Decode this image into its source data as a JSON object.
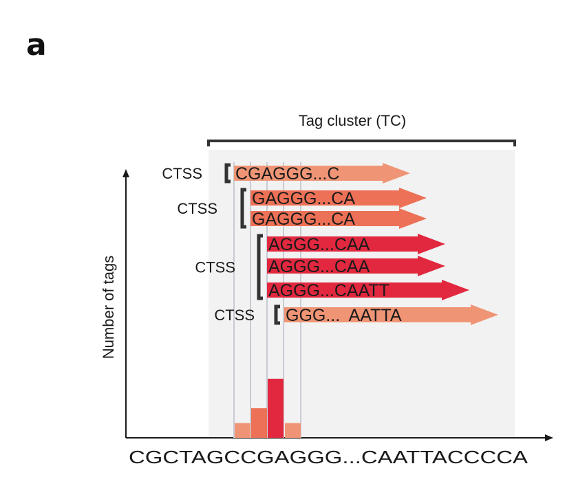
{
  "panel_label": "a",
  "cluster_label": "Tag cluster (TC)",
  "y_axis_label": "Number of tags",
  "genome_sequence": "CGCTAGCCGAGGG...CAATTACCCCA",
  "colors": {
    "light_tag": "#ef9575",
    "mid_tag": "#ec7156",
    "dark_tag": "#e1283f",
    "bar_light": "#ef9575",
    "bar_mid": "#ec7156",
    "bar_dark": "#e1283f",
    "shade": "#f2f2f2",
    "guide": "#c9ccd4",
    "bracket": "#333333"
  },
  "ctss_groups": [
    {
      "label": "CTSS",
      "tags": [
        {
          "sequence": "CGAGGG...C",
          "shade": "light"
        }
      ]
    },
    {
      "label": "CTSS",
      "tags": [
        {
          "sequence": "GAGGG...CA",
          "shade": "mid"
        },
        {
          "sequence": "GAGGG...CA",
          "shade": "mid"
        }
      ]
    },
    {
      "label": "CTSS",
      "tags": [
        {
          "sequence": "AGGG...CAA",
          "shade": "dark"
        },
        {
          "sequence": "AGGG...CAA",
          "shade": "dark"
        },
        {
          "sequence": "AGGG...CAATT",
          "shade": "dark"
        }
      ]
    },
    {
      "label": "CTSS",
      "tags": [
        {
          "sequence": "GGG...  AATTA",
          "shade": "light"
        }
      ]
    }
  ],
  "tag_counts": [
    1,
    2,
    3,
    1
  ]
}
